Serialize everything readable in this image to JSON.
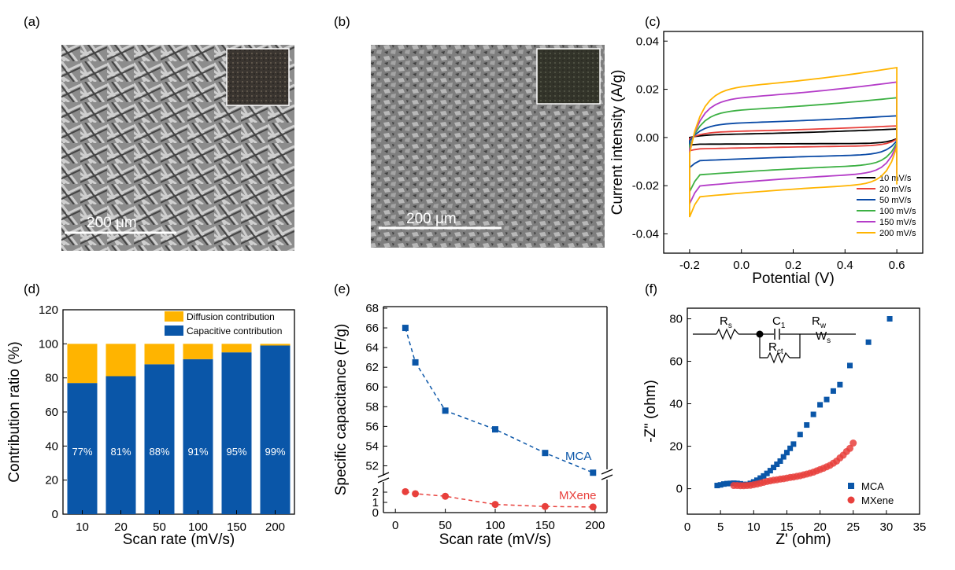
{
  "panels": {
    "a": {
      "label": "(a)",
      "scale_bar": "200 μm"
    },
    "b": {
      "label": "(b)",
      "scale_bar": "200 μm"
    }
  },
  "colors": {
    "yellow": "#FFB400",
    "blue": "#0A56A8",
    "red": "#E8403C",
    "black": "#000000",
    "green": "#3CB043",
    "purple": "#B43CC8",
    "cv_blue": "#0A4AA6"
  },
  "chart_data": [
    {
      "id": "c",
      "panel_label": "(c)",
      "type": "line",
      "title": "",
      "xlabel": "Potential (V)",
      "ylabel": "Current intensity (A/g)",
      "xlim": [
        -0.3,
        0.7
      ],
      "ylim": [
        -0.048,
        0.044
      ],
      "xticks": [
        -0.2,
        0.0,
        0.2,
        0.4,
        0.6
      ],
      "xtick_labels": [
        "-0.2",
        "0.0",
        "0.2",
        "0.4",
        "0.6"
      ],
      "yticks": [
        -0.04,
        -0.02,
        0.0,
        0.02,
        0.04
      ],
      "ytick_labels": [
        "-0.04",
        "-0.02",
        "0.00",
        "0.02",
        "0.04"
      ],
      "legend_position": "bottom-right",
      "series": [
        {
          "name": "10 mV/s",
          "color": "#000000",
          "upper": [
            0.0,
            0.0012,
            0.0035
          ],
          "lower": [
            -0.0032,
            -0.0028,
            -0.0025
          ]
        },
        {
          "name": "20 mV/s",
          "color": "#E8403C",
          "upper": [
            0.0012,
            0.0024,
            0.0048
          ],
          "lower": [
            -0.0055,
            -0.0048,
            -0.0035
          ]
        },
        {
          "name": "50 mV/s",
          "color": "#0A4AA6",
          "upper": [
            0.0035,
            0.0058,
            0.009
          ],
          "lower": [
            -0.0125,
            -0.0098,
            -0.0072
          ]
        },
        {
          "name": "100 mV/s",
          "color": "#3CB043",
          "upper": [
            0.0085,
            0.011,
            0.0165
          ],
          "lower": [
            -0.0225,
            -0.0158,
            -0.0115
          ]
        },
        {
          "name": "150 mV/s",
          "color": "#B43CC8",
          "upper": [
            0.0125,
            0.016,
            0.023
          ],
          "lower": [
            -0.0275,
            -0.0205,
            -0.015
          ]
        },
        {
          "name": "200 mV/s",
          "color": "#FFB400",
          "upper": [
            0.0165,
            0.0205,
            0.029
          ],
          "lower": [
            -0.033,
            -0.025,
            -0.0195
          ]
        }
      ]
    },
    {
      "id": "d",
      "panel_label": "(d)",
      "type": "bar",
      "title": "",
      "xlabel": "Scan rate (mV/s)",
      "ylabel": "Contribution ratio (%)",
      "categories": [
        "10",
        "20",
        "50",
        "100",
        "150",
        "200"
      ],
      "ylim": [
        0,
        120
      ],
      "yticks": [
        0,
        20,
        40,
        60,
        80,
        100,
        120
      ],
      "legend_position": "top-right",
      "series": [
        {
          "name": "Capacitive contribution",
          "color": "#0A56A8",
          "values": [
            77,
            81,
            88,
            91,
            95,
            99
          ]
        },
        {
          "name": "Diffusion contribution",
          "color": "#FFB400",
          "values": [
            23,
            19,
            12,
            9,
            5,
            1
          ]
        }
      ],
      "data_labels": [
        "77%",
        "81%",
        "88%",
        "91%",
        "95%",
        "99%"
      ]
    },
    {
      "id": "e",
      "panel_label": "(e)",
      "type": "scatter",
      "title": "",
      "xlabel": "Scan rate (mV/s)",
      "ylabel": "Specific capacitance (F/g)",
      "xlim": [
        -12,
        212
      ],
      "xticks": [
        0,
        50,
        100,
        150,
        200
      ],
      "axis_break": true,
      "upper_ylim": [
        51,
        68
      ],
      "upper_yticks": [
        52,
        54,
        56,
        58,
        60,
        62,
        64,
        66,
        68
      ],
      "lower_ylim": [
        0,
        3
      ],
      "lower_yticks": [
        0,
        1,
        2
      ],
      "series": [
        {
          "name": "MCA",
          "color": "#0A56A8",
          "marker": "square",
          "x": [
            10,
            20,
            50,
            100,
            150,
            198
          ],
          "y": [
            66.0,
            62.5,
            57.6,
            55.7,
            53.3,
            51.3
          ]
        },
        {
          "name": "MXene",
          "color": "#E8403C",
          "marker": "circle",
          "x": [
            10,
            20,
            50,
            100,
            150,
            198
          ],
          "y": [
            2.05,
            1.85,
            1.6,
            0.8,
            0.6,
            0.55
          ]
        }
      ]
    },
    {
      "id": "f",
      "panel_label": "(f)",
      "type": "scatter",
      "title": "",
      "xlabel": "Z' (ohm)",
      "ylabel": "-Z\" (ohm)",
      "xlim": [
        0,
        35
      ],
      "ylim": [
        -12,
        85
      ],
      "xticks": [
        0,
        5,
        10,
        15,
        20,
        25,
        30,
        35
      ],
      "yticks": [
        0,
        20,
        40,
        60,
        80
      ],
      "legend_position": "bottom-right",
      "circuit": {
        "Rs": "R",
        "Rs_sub": "s",
        "C1": "C",
        "C1_sub": "1",
        "Rw": "R",
        "Rw_sub": "w",
        "Ws": "W",
        "Ws_sub": "s",
        "Rct": "R",
        "Rct_sub": "ct"
      },
      "series": [
        {
          "name": "MCA",
          "color": "#0A56A8",
          "marker": "square",
          "x": [
            4.5,
            5.0,
            5.5,
            6.0,
            6.5,
            7.0,
            7.5,
            8.0,
            8.5,
            9.0,
            9.5,
            10.0,
            10.5,
            11.0,
            11.5,
            12.0,
            12.5,
            13.0,
            13.5,
            14.0,
            14.5,
            15.0,
            15.5,
            16.0,
            17.0,
            18.0,
            19.0,
            20.0,
            21.0,
            22.0,
            23.0,
            24.5,
            27.3,
            30.5
          ],
          "y": [
            1.5,
            1.8,
            2.2,
            2.4,
            2.5,
            2.6,
            2.5,
            2.3,
            2.0,
            2.0,
            2.5,
            3.2,
            4.0,
            5.0,
            6.0,
            7.2,
            8.5,
            10.0,
            11.5,
            13.0,
            15.0,
            17.0,
            19.0,
            21.0,
            25.5,
            30.0,
            35.0,
            39.5,
            42.0,
            46.0,
            49.0,
            58.0,
            69.0,
            80.0
          ]
        },
        {
          "name": "MXene",
          "color": "#E8403C",
          "marker": "circle",
          "x": [
            7.0,
            7.5,
            8.0,
            8.5,
            9.0,
            9.5,
            10.0,
            10.5,
            11.0,
            11.5,
            12.0,
            12.5,
            13.0,
            13.5,
            14.0,
            14.5,
            15.0,
            15.5,
            16.0,
            16.5,
            17.0,
            17.5,
            18.0,
            18.5,
            19.0,
            19.5,
            20.0,
            20.5,
            21.0,
            21.5,
            22.0,
            22.5,
            23.0,
            23.5,
            24.0,
            24.5,
            25.0
          ],
          "y": [
            1.5,
            1.5,
            1.4,
            1.4,
            1.5,
            1.6,
            1.9,
            2.2,
            2.6,
            3.0,
            3.4,
            3.7,
            4.0,
            4.2,
            4.5,
            4.7,
            5.0,
            5.3,
            5.5,
            5.8,
            6.1,
            6.5,
            6.9,
            7.3,
            7.8,
            8.4,
            9.0,
            9.6,
            10.3,
            11.0,
            12.0,
            13.0,
            14.5,
            15.8,
            17.5,
            19.0,
            21.5
          ]
        }
      ]
    }
  ]
}
